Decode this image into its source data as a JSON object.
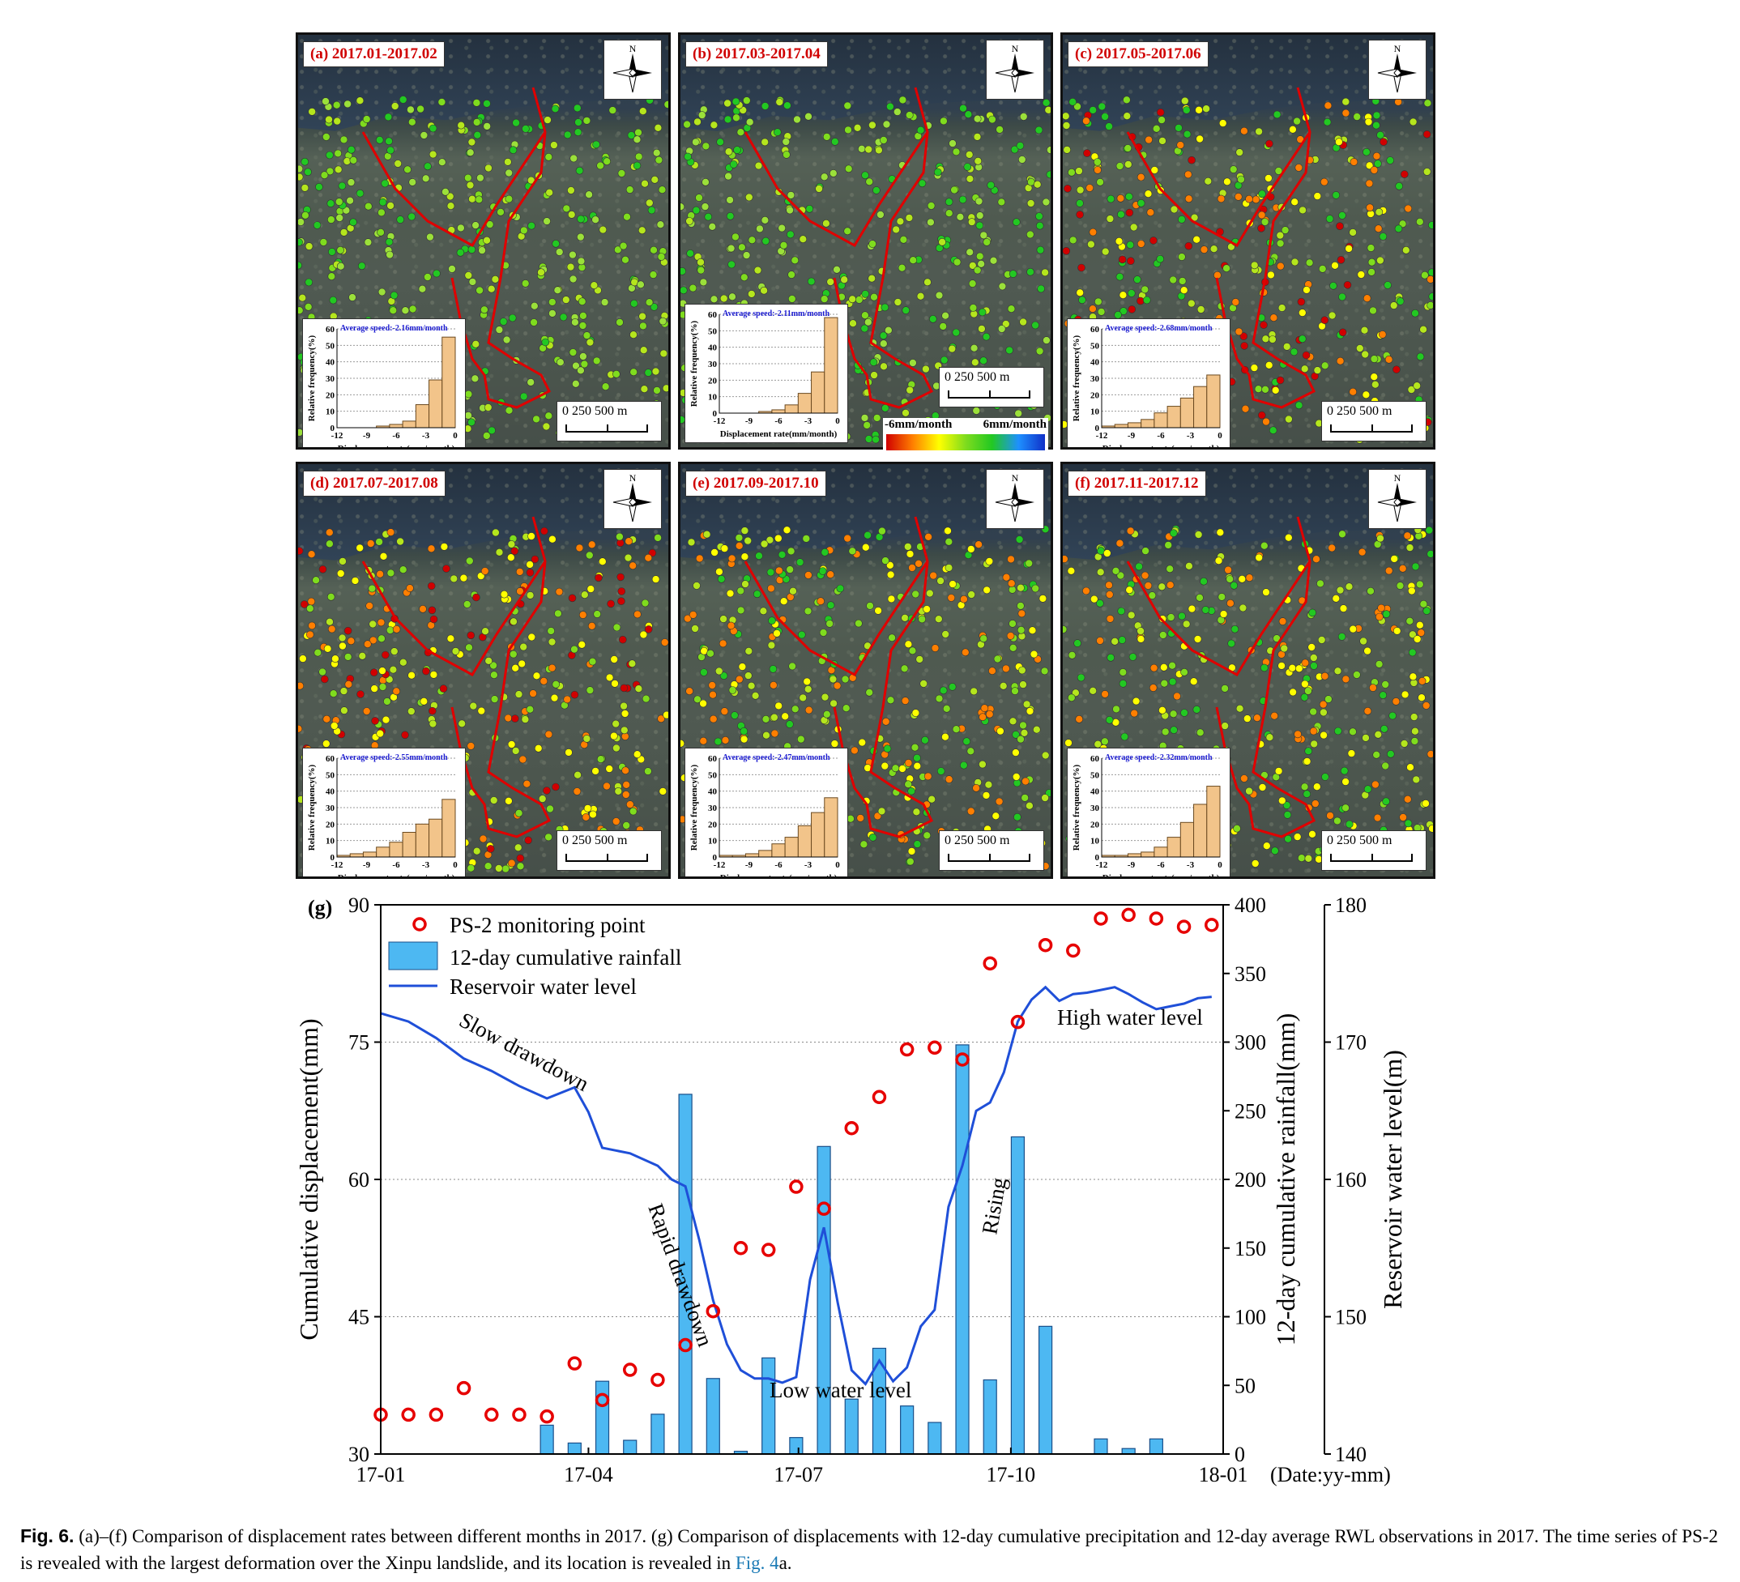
{
  "panels": [
    {
      "label": "(a) 2017.01-2017.02",
      "avg": "Average speed:-2.16mm/month",
      "freq": [
        0,
        0,
        0,
        1,
        2,
        4,
        14,
        29,
        55
      ]
    },
    {
      "label": "(b) 2017.03-2017.04",
      "avg": "Average speed:-2.11mm/month",
      "freq": [
        0,
        0,
        0,
        1,
        2,
        5,
        12,
        25,
        58
      ]
    },
    {
      "label": "(c) 2017.05-2017.06",
      "avg": "Average speed:-2.68mm/month",
      "freq": [
        1,
        2,
        3,
        5,
        9,
        13,
        18,
        25,
        32
      ]
    },
    {
      "label": "(d) 2017.07-2017.08",
      "avg": "Average speed:-2.55mm/month",
      "freq": [
        1,
        2,
        3,
        6,
        9,
        15,
        20,
        23,
        35
      ]
    },
    {
      "label": "(e) 2017.09-2017.10",
      "avg": "Average speed:-2.47mm/month",
      "freq": [
        1,
        1,
        2,
        4,
        8,
        12,
        19,
        27,
        36
      ]
    },
    {
      "label": "(f) 2017.11-2017.12",
      "avg": "Average speed:-2.32mm/month",
      "freq": [
        1,
        1,
        2,
        3,
        6,
        12,
        21,
        32,
        43
      ]
    }
  ],
  "map_common": {
    "north": "N",
    "scale": "0   250  500  m",
    "hist_ylabel": "Relative frequency(%)",
    "hist_xlabel": "Displacement rate(mm/month)",
    "hist_yticks": [
      "0",
      "10",
      "20",
      "30",
      "40",
      "50",
      "60"
    ],
    "hist_xticks": [
      "-12",
      "-9",
      "-6",
      "-3",
      "0"
    ]
  },
  "colorbar": {
    "left": "-6mm/month",
    "right": "6mm/month",
    "colors": [
      "#d00000",
      "#ff7f00",
      "#ffff00",
      "#7fdc1e",
      "#22c822",
      "#1e90ff",
      "#1030c8"
    ]
  },
  "chart_data": {
    "type": "bar+line+scatter",
    "panel_label": "(g)",
    "x_ticks": [
      "17-01",
      "17-04",
      "17-07",
      "17-10",
      "18-01"
    ],
    "x_unit_label": "(Date:yy-mm)",
    "y1_label": "Cumulative displacement(mm)",
    "y1_ticks": [
      "30",
      "45",
      "60",
      "75",
      "90"
    ],
    "y1_lim": [
      30,
      90
    ],
    "y2_label": "12-day cumulative rainfall(mm)",
    "y2_ticks": [
      "0",
      "50",
      "100",
      "150",
      "200",
      "250",
      "300",
      "350",
      "400"
    ],
    "y2_lim": [
      0,
      400
    ],
    "y3_label": "Reservoir water level(m)",
    "y3_ticks": [
      "140",
      "150",
      "160",
      "170",
      "180"
    ],
    "y3_lim": [
      140,
      180
    ],
    "legend": [
      "PS-2 monitoring point",
      "12-day cumulative rainfall",
      "Reservoir water level"
    ],
    "annotations": [
      "Slow drawdown",
      "Rapid drawdown",
      "Low water level",
      "Rising",
      "High water level"
    ],
    "ps2_points": {
      "day": [
        0,
        12,
        24,
        36,
        48,
        60,
        72,
        84,
        96,
        108,
        120,
        132,
        144,
        156,
        168,
        180,
        192,
        204,
        216,
        228,
        240,
        252,
        264,
        276,
        288,
        300,
        312,
        324,
        336,
        348,
        360
      ],
      "disp": [
        34.3,
        34.3,
        34.3,
        37.2,
        34.3,
        34.3,
        34.1,
        39.9,
        35.9,
        39.2,
        38.1,
        41.9,
        45.6,
        52.5,
        52.3,
        59.2,
        56.8,
        65.6,
        69.0,
        74.2,
        74.4,
        73.1,
        83.6,
        77.2,
        85.6,
        85.0,
        88.5,
        88.9,
        88.5,
        87.6,
        87.8
      ]
    },
    "rainfall": {
      "day": [
        0,
        12,
        24,
        36,
        48,
        60,
        72,
        84,
        96,
        108,
        120,
        132,
        144,
        156,
        168,
        180,
        192,
        204,
        216,
        228,
        240,
        252,
        264,
        276,
        288,
        300,
        312,
        324,
        336,
        348,
        360
      ],
      "mm": [
        0,
        0,
        0,
        0,
        0,
        0,
        21,
        8,
        53,
        10,
        29,
        262,
        55,
        2,
        70,
        12,
        224,
        40,
        77,
        35,
        23,
        298,
        54,
        231,
        93,
        0,
        11,
        4,
        11,
        0,
        0
      ]
    },
    "water_level": {
      "day": [
        0,
        12,
        24,
        36,
        48,
        60,
        72,
        84,
        90,
        96,
        108,
        120,
        126,
        132,
        138,
        144,
        150,
        156,
        162,
        168,
        174,
        180,
        186,
        192,
        198,
        204,
        210,
        216,
        222,
        228,
        234,
        240,
        246,
        252,
        258,
        264,
        270,
        276,
        282,
        288,
        294,
        300,
        306,
        312,
        318,
        324,
        330,
        336,
        342,
        348,
        354,
        360
      ],
      "m": [
        172.1,
        171.5,
        170.3,
        168.8,
        167.9,
        166.8,
        165.9,
        166.7,
        164.9,
        162.3,
        161.9,
        161.0,
        160.0,
        159.5,
        155.6,
        151.2,
        148.0,
        146.1,
        145.5,
        145.5,
        145.2,
        145.6,
        152.7,
        156.5,
        151.0,
        146.1,
        145.1,
        146.8,
        145.3,
        146.3,
        149.3,
        150.5,
        158.0,
        161.0,
        165.0,
        165.6,
        167.8,
        171.5,
        173.1,
        174.0,
        173.0,
        173.5,
        173.6,
        173.8,
        174.0,
        173.5,
        172.9,
        172.4,
        172.6,
        172.8,
        173.2,
        173.3
      ]
    }
  },
  "caption": {
    "fig": "Fig. 6.",
    "text": " (a)–(f) Comparison of displacement rates between different months in 2017. (g) Comparison of displacements with 12-day cumulative precipitation and 12-day average RWL observations in 2017. The time series of PS-2 is revealed with the largest deformation over the Xinpu landslide, and its location is revealed in ",
    "link": "Fig. 4",
    "tail": "a."
  }
}
